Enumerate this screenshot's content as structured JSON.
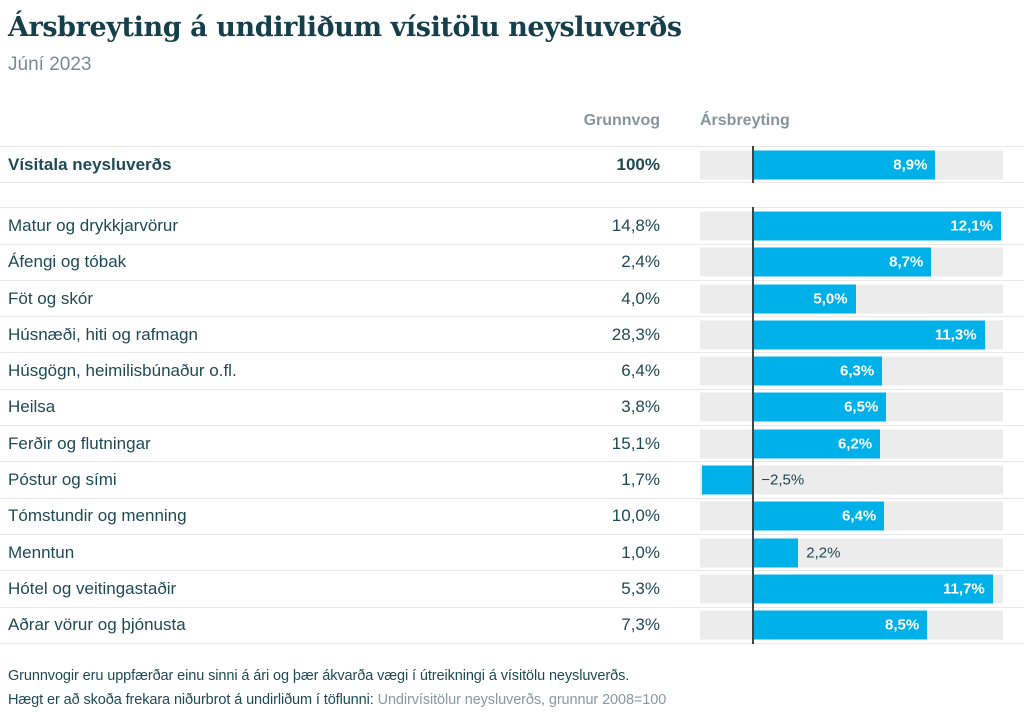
{
  "header": {
    "title": "Ársbreyting á undirliðum vísitölu neysluverðs",
    "subtitle": "Júní 2023"
  },
  "columns": {
    "weight": "Grunnvog",
    "change": "Ársbreyting"
  },
  "colors": {
    "bar": "#00b0e8",
    "track": "#ececec",
    "text_dark": "#1e4a55",
    "text_muted": "#87949b",
    "zero_line": "#3f4447"
  },
  "chart_data": {
    "type": "bar",
    "orientation": "horizontal",
    "unit": "%",
    "xlim": [
      -2.6,
      12.2
    ],
    "zero_line": true,
    "grid": false,
    "title": "Ársbreyting á undirliðum vísitölu neysluverðs",
    "subtitle": "Júní 2023",
    "columns": [
      "Grunnvog",
      "Ársbreyting"
    ],
    "rows": [
      {
        "label": "Vísitala neysluverðs",
        "weight": "100%",
        "weight_pct": 100,
        "value": 8.9,
        "value_label": "8,9%",
        "bold": true,
        "group": "total",
        "label_inside": true
      },
      {
        "label": "Matur og drykkjarvörur",
        "weight": "14,8%",
        "weight_pct": 14.8,
        "value": 12.1,
        "value_label": "12,1%",
        "bold": false,
        "group": "list",
        "label_inside": true
      },
      {
        "label": "Áfengi og tóbak",
        "weight": "2,4%",
        "weight_pct": 2.4,
        "value": 8.7,
        "value_label": "8,7%",
        "bold": false,
        "group": "list",
        "label_inside": true
      },
      {
        "label": "Föt og skór",
        "weight": "4,0%",
        "weight_pct": 4.0,
        "value": 5.0,
        "value_label": "5,0%",
        "bold": false,
        "group": "list",
        "label_inside": true
      },
      {
        "label": "Húsnæði, hiti og rafmagn",
        "weight": "28,3%",
        "weight_pct": 28.3,
        "value": 11.3,
        "value_label": "11,3%",
        "bold": false,
        "group": "list",
        "label_inside": true
      },
      {
        "label": "Húsgögn, heimilisbúnaður o.fl.",
        "weight": "6,4%",
        "weight_pct": 6.4,
        "value": 6.3,
        "value_label": "6,3%",
        "bold": false,
        "group": "list",
        "label_inside": true
      },
      {
        "label": "Heilsa",
        "weight": "3,8%",
        "weight_pct": 3.8,
        "value": 6.5,
        "value_label": "6,5%",
        "bold": false,
        "group": "list",
        "label_inside": true
      },
      {
        "label": "Ferðir og flutningar",
        "weight": "15,1%",
        "weight_pct": 15.1,
        "value": 6.2,
        "value_label": "6,2%",
        "bold": false,
        "group": "list",
        "label_inside": true
      },
      {
        "label": "Póstur og sími",
        "weight": "1,7%",
        "weight_pct": 1.7,
        "value": -2.5,
        "value_label": "−2,5%",
        "bold": false,
        "group": "list",
        "label_inside": false
      },
      {
        "label": "Tómstundir og menning",
        "weight": "10,0%",
        "weight_pct": 10.0,
        "value": 6.4,
        "value_label": "6,4%",
        "bold": false,
        "group": "list",
        "label_inside": true
      },
      {
        "label": "Menntun",
        "weight": "1,0%",
        "weight_pct": 1.0,
        "value": 2.2,
        "value_label": "2,2%",
        "bold": false,
        "group": "list",
        "label_inside": false
      },
      {
        "label": "Hótel og veitingastaðir",
        "weight": "5,3%",
        "weight_pct": 5.3,
        "value": 11.7,
        "value_label": "11,7%",
        "bold": false,
        "group": "list",
        "label_inside": true
      },
      {
        "label": "Aðrar vörur og þjónusta",
        "weight": "7,3%",
        "weight_pct": 7.3,
        "value": 8.5,
        "value_label": "8,5%",
        "bold": false,
        "group": "list",
        "label_inside": true
      }
    ]
  },
  "footer": {
    "line1": "Grunnvogir eru uppfærðar einu sinni á ári og þær ákvarða vægi í útreikningi á vísitölu neysluverðs.",
    "line2_prefix": "Hægt er að skoða frekara niðurbrot á undirliðum í töflunni: ",
    "line2_link": "Undirvísitölur neysluverðs, grunnur 2008=100"
  }
}
